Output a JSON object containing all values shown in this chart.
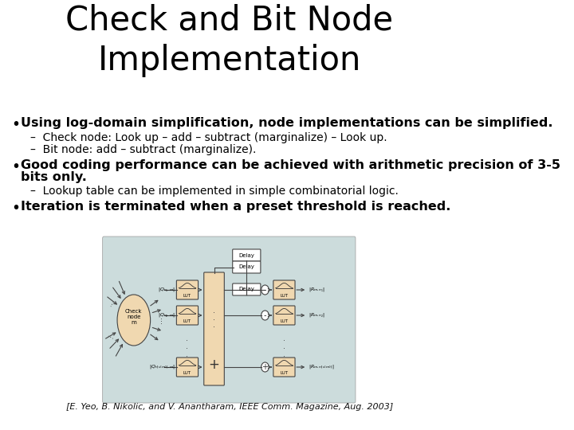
{
  "title_line1": "Check and Bit Node",
  "title_line2": "Implementation",
  "title_fontsize": 30,
  "bg_color": "#ffffff",
  "bullet1_bold": "Using log-domain simplification, node implementations can be simplified.",
  "bullet1_sub1": "Check node: Look up – add – subtract (marginalize) – Look up.",
  "bullet1_sub2": "Bit node: add – subtract (marginalize).",
  "bullet2_bold_part1": "Good coding performance can be achieved with arithmetic precision of 3-5",
  "bullet2_bold_part2": "bits only.",
  "bullet2_sub1": "Lookup table can be implemented in simple combinatorial logic.",
  "bullet3_bold": "Iteration is terminated when a preset threshold is reached.",
  "diagram_bg": "#ccdcdc",
  "lut_box_color": "#f0d8b0",
  "delay_box_color": "#ffffff",
  "node_ellipse_color": "#f0d8b0",
  "citation": "[E. Yeo, B. Nikolic, and V. Anantharam, IEEE Comm. Magazine, Aug. 2003]",
  "bullet_fontsize": 11.5,
  "sub_fontsize": 10,
  "citation_fontsize": 8,
  "text_color": "#000000",
  "diagram_line_color": "#444444"
}
